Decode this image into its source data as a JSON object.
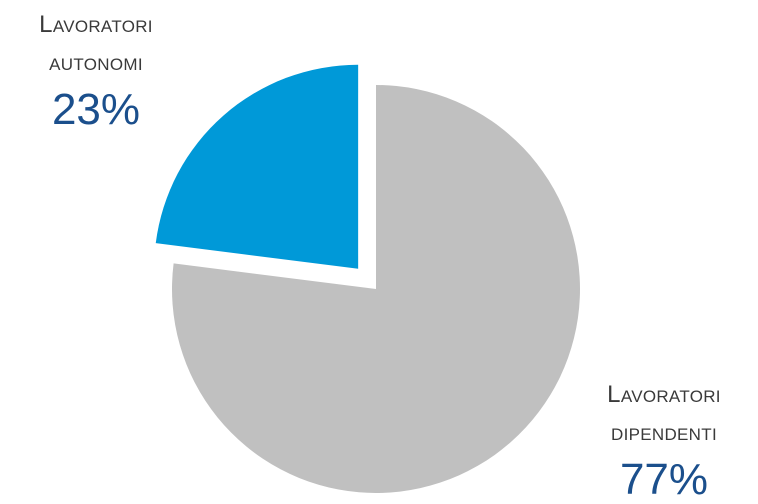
{
  "chart_data": {
    "type": "pie",
    "title": "",
    "slices": [
      {
        "line1": "Lavoratori",
        "line2": "autonomi",
        "value": 23,
        "value_label": "23%",
        "color": "#0099d8",
        "exploded": true
      },
      {
        "line1": "Lavoratori",
        "line2": "dipendenti",
        "value": 77,
        "value_label": "77%",
        "color": "#c0c0c0",
        "exploded": false
      }
    ],
    "value_label_color": "#1b4f8c",
    "legend": "none"
  }
}
